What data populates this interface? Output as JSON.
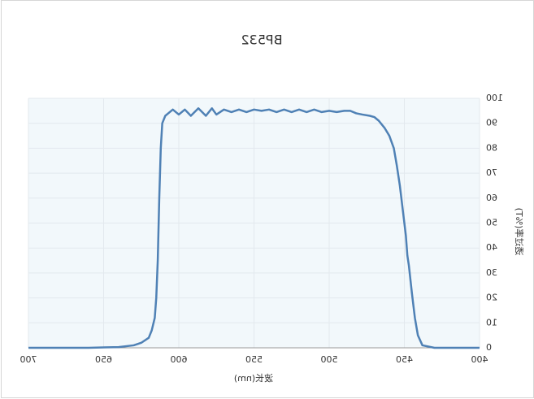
{
  "chart_data": {
    "type": "line",
    "title": "BP532",
    "x_label": "波长(nm)",
    "y_label": "透过率(%T)",
    "mirrored": true,
    "grid": true,
    "x": [
      400,
      430,
      438,
      441,
      443,
      445,
      447,
      448,
      449,
      451,
      453,
      455,
      457,
      460,
      463,
      467,
      470,
      473,
      478,
      482,
      486,
      490,
      495,
      500,
      505,
      510,
      515,
      520,
      525,
      530,
      535,
      540,
      545,
      550,
      555,
      560,
      565,
      570,
      575,
      578,
      582,
      587,
      592,
      596,
      600,
      604,
      607,
      609,
      611,
      612,
      613,
      614,
      615,
      616,
      618,
      620,
      625,
      630,
      640,
      660,
      700
    ],
    "series": [
      {
        "name": "BP532",
        "color": "#4f81b5",
        "values": [
          0,
          0,
          1,
          5,
          12,
          22,
          33,
          37,
          45,
          55,
          65,
          73,
          80,
          85,
          88,
          91,
          92.5,
          93,
          93.5,
          94,
          95,
          95,
          94.5,
          95,
          94.5,
          95.5,
          94.5,
          95.5,
          94.5,
          95.5,
          94.5,
          95.5,
          95,
          95.5,
          94.5,
          95.5,
          94.5,
          95.5,
          93.5,
          96,
          93,
          96,
          93,
          95.5,
          93.5,
          95.5,
          94,
          93,
          90,
          80,
          60,
          35,
          20,
          12,
          7,
          4,
          2,
          1,
          0.3,
          0,
          0
        ]
      }
    ],
    "xlim": [
      400,
      700
    ],
    "xticks": [
      400,
      450,
      500,
      550,
      600,
      650,
      700
    ],
    "ylim": [
      0,
      100
    ],
    "yticks": [
      0,
      10,
      20,
      30,
      40,
      50,
      60,
      70,
      80,
      90,
      100
    ]
  }
}
